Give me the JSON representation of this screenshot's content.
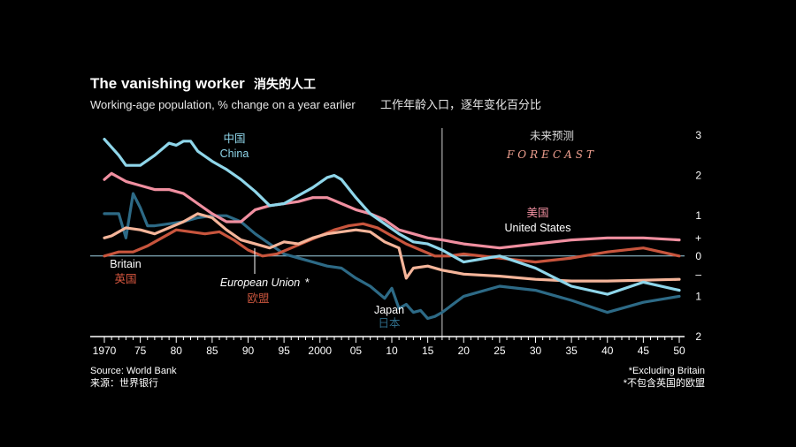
{
  "chart_data": {
    "type": "line",
    "title": "The vanishing worker",
    "title_cn": "消失的人工",
    "subtitle": "Working-age population, % change on a year earlier",
    "subtitle_cn": "工作年龄入口，逐年变化百分比",
    "source": "Source: World Bank",
    "source_cn": "来源：世界银行",
    "footnote": "*Excluding Britain",
    "footnote_cn": "*不包含英国的欧盟",
    "forecast_label": "FORECAST",
    "forecast_label_cn": "未来预测",
    "forecast_start": 2017,
    "xlim": [
      1970,
      2050
    ],
    "ylim": [
      -2,
      3
    ],
    "x_ticks": [
      {
        "value": 1970,
        "label": "1970"
      },
      {
        "value": 1975,
        "label": "75"
      },
      {
        "value": 1980,
        "label": "80"
      },
      {
        "value": 1985,
        "label": "85"
      },
      {
        "value": 1990,
        "label": "90"
      },
      {
        "value": 1995,
        "label": "95"
      },
      {
        "value": 2000,
        "label": "2000"
      },
      {
        "value": 2005,
        "label": "05"
      },
      {
        "value": 2010,
        "label": "10"
      },
      {
        "value": 2015,
        "label": "15"
      },
      {
        "value": 2020,
        "label": "20"
      },
      {
        "value": 2025,
        "label": "25"
      },
      {
        "value": 2030,
        "label": "30"
      },
      {
        "value": 2035,
        "label": "35"
      },
      {
        "value": 2040,
        "label": "40"
      },
      {
        "value": 2045,
        "label": "45"
      },
      {
        "value": 2050,
        "label": "50"
      }
    ],
    "y_ticks": [
      {
        "value": 3,
        "label": "3"
      },
      {
        "value": 2,
        "label": "2"
      },
      {
        "value": 1,
        "label": "1"
      },
      {
        "value": 0.45,
        "label": "+"
      },
      {
        "value": 0,
        "label": "0"
      },
      {
        "value": -0.45,
        "label": "–"
      },
      {
        "value": -1,
        "label": "1"
      },
      {
        "value": -2,
        "label": "2"
      }
    ],
    "colors": {
      "China": "#8fd6ea",
      "United States": "#f08fa0",
      "European Union": "#c8553d",
      "Britain": "#f5b59a",
      "Japan": "#2d6a86"
    },
    "series": [
      {
        "name": "China",
        "name_cn": "中国",
        "x": [
          1970,
          1972,
          1973,
          1975,
          1977,
          1979,
          1980,
          1981,
          1982,
          1983,
          1985,
          1987,
          1989,
          1991,
          1993,
          1995,
          1997,
          1999,
          2001,
          2002,
          2003,
          2005,
          2007,
          2009,
          2011,
          2013,
          2015,
          2017,
          2020,
          2025,
          2030,
          2035,
          2040,
          2045,
          2050
        ],
        "y": [
          2.9,
          2.5,
          2.25,
          2.25,
          2.5,
          2.8,
          2.75,
          2.85,
          2.85,
          2.6,
          2.35,
          2.15,
          1.9,
          1.6,
          1.25,
          1.3,
          1.5,
          1.7,
          1.95,
          2.0,
          1.9,
          1.45,
          1.05,
          0.8,
          0.55,
          0.35,
          0.3,
          0.15,
          -0.15,
          0.0,
          -0.3,
          -0.75,
          -0.95,
          -0.65,
          -0.85
        ]
      },
      {
        "name": "United States",
        "name_cn": "美国",
        "x": [
          1970,
          1971,
          1973,
          1975,
          1977,
          1979,
          1981,
          1983,
          1985,
          1987,
          1989,
          1991,
          1993,
          1995,
          1997,
          1999,
          2001,
          2003,
          2005,
          2007,
          2009,
          2011,
          2013,
          2015,
          2017,
          2020,
          2025,
          2030,
          2035,
          2040,
          2045,
          2050
        ],
        "y": [
          1.9,
          2.05,
          1.85,
          1.75,
          1.65,
          1.65,
          1.55,
          1.3,
          1.05,
          0.85,
          0.85,
          1.15,
          1.25,
          1.3,
          1.35,
          1.45,
          1.45,
          1.3,
          1.15,
          1.05,
          0.9,
          0.65,
          0.55,
          0.45,
          0.4,
          0.3,
          0.2,
          0.3,
          0.4,
          0.45,
          0.45,
          0.4
        ]
      },
      {
        "name": "European Union",
        "name_cn": "欧盟",
        "x": [
          1970,
          1972,
          1974,
          1976,
          1978,
          1980,
          1982,
          1984,
          1986,
          1988,
          1990,
          1992,
          1994,
          1996,
          1998,
          2000,
          2002,
          2004,
          2006,
          2008,
          2010,
          2012,
          2014,
          2016,
          2018,
          2020,
          2025,
          2030,
          2035,
          2040,
          2045,
          2050
        ],
        "y": [
          0.0,
          0.1,
          0.1,
          0.25,
          0.45,
          0.65,
          0.6,
          0.55,
          0.6,
          0.4,
          0.15,
          0.0,
          0.05,
          0.2,
          0.35,
          0.5,
          0.65,
          0.75,
          0.8,
          0.7,
          0.5,
          0.3,
          0.15,
          0.0,
          0.0,
          0.05,
          -0.05,
          -0.15,
          -0.05,
          0.1,
          0.2,
          0.0
        ]
      },
      {
        "name": "Britain",
        "name_cn": "英国",
        "x": [
          1970,
          1971,
          1973,
          1975,
          1977,
          1979,
          1981,
          1983,
          1985,
          1987,
          1989,
          1991,
          1993,
          1995,
          1997,
          1999,
          2001,
          2003,
          2005,
          2007,
          2009,
          2011,
          2012,
          2013,
          2015,
          2017,
          2020,
          2025,
          2030,
          2035,
          2040,
          2045,
          2050
        ],
        "y": [
          0.45,
          0.5,
          0.7,
          0.65,
          0.55,
          0.7,
          0.85,
          1.05,
          0.95,
          0.65,
          0.4,
          0.3,
          0.2,
          0.35,
          0.3,
          0.45,
          0.55,
          0.6,
          0.65,
          0.6,
          0.35,
          0.2,
          -0.55,
          -0.3,
          -0.25,
          -0.35,
          -0.45,
          -0.5,
          -0.58,
          -0.62,
          -0.62,
          -0.6,
          -0.58
        ]
      },
      {
        "name": "Japan",
        "name_cn": "日本",
        "x": [
          1970,
          1972,
          1973,
          1974,
          1975,
          1976,
          1977,
          1979,
          1981,
          1983,
          1985,
          1987,
          1989,
          1991,
          1993,
          1995,
          1997,
          1999,
          2001,
          2003,
          2005,
          2007,
          2009,
          2010,
          2011,
          2012,
          2013,
          2014,
          2015,
          2016,
          2017,
          2020,
          2025,
          2030,
          2035,
          2040,
          2045,
          2050
        ],
        "y": [
          1.05,
          1.05,
          0.45,
          1.55,
          1.2,
          0.75,
          0.75,
          0.8,
          0.85,
          0.95,
          1.0,
          1.0,
          0.85,
          0.55,
          0.3,
          0.05,
          -0.05,
          -0.15,
          -0.25,
          -0.3,
          -0.55,
          -0.75,
          -1.05,
          -0.8,
          -1.3,
          -1.2,
          -1.4,
          -1.35,
          -1.55,
          -1.5,
          -1.4,
          -1.0,
          -0.75,
          -0.85,
          -1.1,
          -1.4,
          -1.15,
          -1.0
        ]
      }
    ]
  }
}
